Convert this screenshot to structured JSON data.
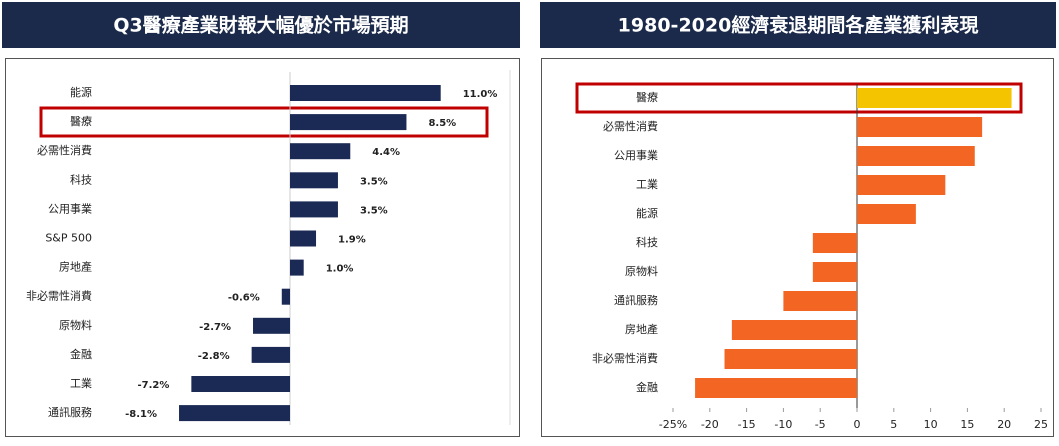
{
  "chart_data": [
    {
      "type": "hbar",
      "title": "Q3醫療產業財報大幅優於市場預期",
      "categories": [
        "能源",
        "醫療",
        "必需性消費",
        "科技",
        "公用事業",
        "S&P 500",
        "房地產",
        "非必需性消費",
        "原物料",
        "金融",
        "工業",
        "通訊服務"
      ],
      "values": [
        11.0,
        8.5,
        4.4,
        3.5,
        3.5,
        1.9,
        1.0,
        -0.6,
        -2.7,
        -2.8,
        -7.2,
        -8.1
      ],
      "value_labels": [
        "11.0%",
        "8.5%",
        "4.4%",
        "3.5%",
        "3.5%",
        "1.9%",
        "1.0%",
        "-0.6%",
        "-2.7%",
        "-2.8%",
        "-7.2%",
        "-8.1%"
      ],
      "color": "#1b2a55"
    },
    {
      "type": "hbar",
      "title": "1980-2020經濟衰退期間各產業獲利表現",
      "categories": [
        "醫療",
        "必需性消費",
        "公用事業",
        "工業",
        "能源",
        "科技",
        "原物料",
        "通訊服務",
        "房地產",
        "非必需性消費",
        "金融"
      ],
      "values": [
        21,
        17,
        16,
        12,
        8,
        -6,
        -6,
        -10,
        -17,
        -18,
        -22
      ],
      "colors": [
        "#f5c400",
        "#f26522",
        "#f26522",
        "#f26522",
        "#f26522",
        "#f26522",
        "#f26522",
        "#f26522",
        "#f26522",
        "#f26522",
        "#f26522"
      ],
      "xlim": [
        -25,
        25
      ],
      "xticks": [
        {
          "value": -25,
          "label": "-25%"
        },
        -20,
        -15,
        -10,
        -5,
        0,
        5,
        10,
        15,
        20,
        25
      ]
    }
  ]
}
